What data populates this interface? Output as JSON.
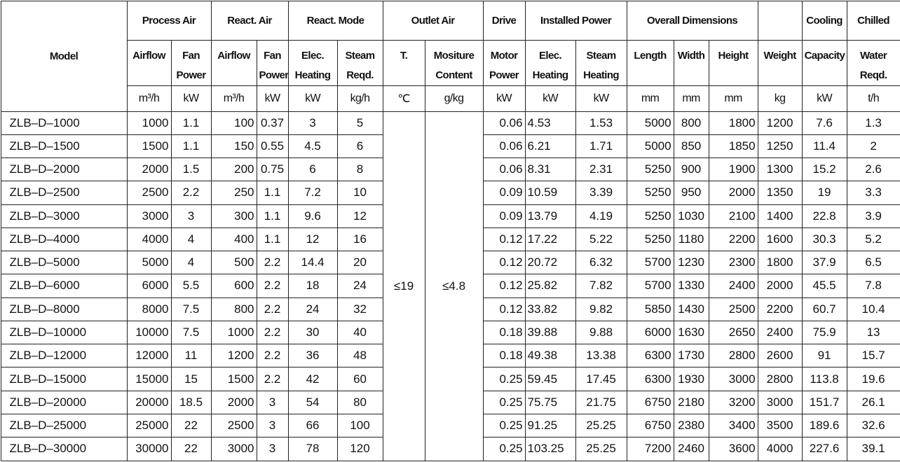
{
  "header": {
    "columns": [
      {
        "label": "Model"
      },
      {
        "group": "Process Air",
        "columns": [
          {
            "name": [
              "Airflow"
            ],
            "unit": "m³/h"
          },
          {
            "name": [
              "Fan",
              "Power"
            ],
            "unit": "kW"
          }
        ]
      },
      {
        "group": "React. Air",
        "columns": [
          {
            "name": [
              "Airflow"
            ],
            "unit": "m³/h"
          },
          {
            "name": [
              "Fan",
              "Power"
            ],
            "unit": "kW"
          }
        ]
      },
      {
        "group": "React. Mode",
        "columns": [
          {
            "name": [
              "Elec.",
              "Heating"
            ],
            "unit": "kW"
          },
          {
            "name": [
              "Steam",
              "Reqd."
            ],
            "unit": "kg/h"
          }
        ]
      },
      {
        "group": "Outlet Air",
        "columns": [
          {
            "name": [
              "T."
            ],
            "unit": "℃"
          },
          {
            "name": [
              "Mositure",
              "Content"
            ],
            "unit": "g/kg"
          }
        ],
        "values": [
          "≤19",
          "≤4.8"
        ]
      },
      {
        "group": "Drive",
        "columns": [
          {
            "name": [
              "Motor",
              "Power"
            ],
            "unit": "kW"
          }
        ]
      },
      {
        "group": "Installed Power",
        "columns": [
          {
            "name": [
              "Elec.",
              "Heating"
            ],
            "unit": "kW"
          },
          {
            "name": [
              "Steam",
              "Heating"
            ],
            "unit": "kW"
          }
        ]
      },
      {
        "group": "Overall Dimensions",
        "columns": [
          {
            "name": [
              "Length"
            ],
            "unit": "mm"
          },
          {
            "name": [
              "Width"
            ],
            "unit": "mm"
          },
          {
            "name": [
              "Height"
            ],
            "unit": "mm"
          }
        ]
      },
      {
        "name": [
          "Weight"
        ],
        "unit": "kg"
      },
      {
        "group": "Cooling",
        "columns": [
          {
            "name": [
              "Capacity"
            ],
            "unit": "kW"
          }
        ]
      },
      {
        "group": "Chilled",
        "columns": [
          {
            "name": [
              "Water",
              "Reqd."
            ],
            "unit": "t/h"
          }
        ]
      }
    ]
  },
  "table": {
    "rows": [
      [
        "ZLB–D–1000",
        1000,
        1.1,
        100,
        0.37,
        3,
        5,
        0.06,
        4.53,
        1.53,
        5000,
        800,
        1800,
        1200,
        7.6,
        1.3
      ],
      [
        "ZLB–D–1500",
        1500,
        1.1,
        150,
        0.55,
        4.5,
        6,
        0.06,
        6.21,
        1.71,
        5000,
        850,
        1850,
        1250,
        11.4,
        2
      ],
      [
        "ZLB–D–2000",
        2000,
        1.5,
        200,
        0.75,
        6,
        8,
        0.06,
        8.31,
        2.31,
        5250,
        900,
        1900,
        1300,
        15.2,
        2.6
      ],
      [
        "ZLB–D–2500",
        2500,
        2.2,
        250,
        1.1,
        7.2,
        10,
        0.09,
        10.59,
        3.39,
        5250,
        950,
        2000,
        1350,
        19,
        3.3
      ],
      [
        "ZLB–D–3000",
        3000,
        3,
        300,
        1.1,
        9.6,
        12,
        0.09,
        13.79,
        4.19,
        5250,
        1030,
        2100,
        1400,
        22.8,
        3.9
      ],
      [
        "ZLB–D–4000",
        4000,
        4,
        400,
        1.1,
        12,
        16,
        0.12,
        17.22,
        5.22,
        5250,
        1180,
        2200,
        1600,
        30.3,
        5.2
      ],
      [
        "ZLB–D–5000",
        5000,
        4,
        500,
        2.2,
        14.4,
        20,
        0.12,
        20.72,
        6.32,
        5700,
        1230,
        2300,
        1800,
        37.9,
        6.5
      ],
      [
        "ZLB–D–6000",
        6000,
        5.5,
        600,
        2.2,
        18,
        24,
        0.12,
        25.82,
        7.82,
        5700,
        1330,
        2400,
        2000,
        45.5,
        7.8
      ],
      [
        "ZLB–D–8000",
        8000,
        7.5,
        800,
        2.2,
        24,
        32,
        0.12,
        33.82,
        9.82,
        5850,
        1430,
        2500,
        2200,
        60.7,
        10.4
      ],
      [
        "ZLB–D–10000",
        10000,
        7.5,
        1000,
        2.2,
        30,
        40,
        0.18,
        39.88,
        9.88,
        6000,
        1630,
        2650,
        2400,
        75.9,
        13
      ],
      [
        "ZLB–D–12000",
        12000,
        11,
        1200,
        2.2,
        36,
        48,
        0.18,
        49.38,
        13.38,
        6300,
        1730,
        2800,
        2600,
        91,
        15.7
      ],
      [
        "ZLB–D–15000",
        15000,
        15,
        1500,
        2.2,
        42,
        60,
        0.25,
        59.45,
        17.45,
        6300,
        1930,
        3000,
        2800,
        113.8,
        19.6
      ],
      [
        "ZLB–D–20000",
        20000,
        18.5,
        2000,
        3,
        54,
        80,
        0.25,
        75.75,
        21.75,
        6750,
        2180,
        3200,
        3000,
        151.7,
        26.1
      ],
      [
        "ZLB–D–25000",
        25000,
        22,
        2500,
        3,
        66,
        100,
        0.25,
        91.25,
        25.25,
        6750,
        2380,
        3400,
        3500,
        189.6,
        32.6
      ],
      [
        "ZLB–D–30000",
        30000,
        22,
        3000,
        3,
        78,
        120,
        0.25,
        103.25,
        25.25,
        7200,
        2460,
        3600,
        4000,
        227.6,
        39.1
      ]
    ]
  }
}
